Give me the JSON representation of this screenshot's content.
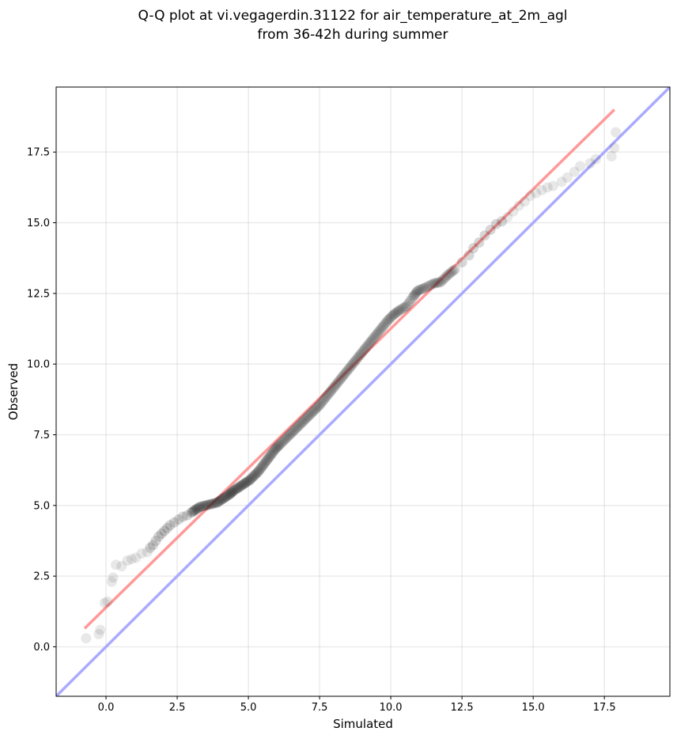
{
  "chart_data": {
    "type": "scatter",
    "title": "Q-Q plot at vi.vegagerdin.31122 for air_temperature_at_2m_agl",
    "subtitle": "from 36-42h during summer",
    "xlabel": "Simulated",
    "ylabel": "Observed",
    "xlim": [
      -1.75,
      19.8
    ],
    "ylim": [
      -1.75,
      19.8
    ],
    "xticks": [
      0.0,
      2.5,
      5.0,
      7.5,
      10.0,
      12.5,
      15.0,
      17.5
    ],
    "yticks": [
      0.0,
      2.5,
      5.0,
      7.5,
      10.0,
      12.5,
      15.0,
      17.5
    ],
    "xtick_labels": [
      "0.0",
      "2.5",
      "5.0",
      "7.5",
      "10.0",
      "12.5",
      "15.0",
      "17.5"
    ],
    "ytick_labels": [
      "0.0",
      "2.5",
      "5.0",
      "7.5",
      "10.0",
      "12.5",
      "15.0",
      "17.5"
    ],
    "grid": true,
    "reference_line": {
      "description": "y = x",
      "color": "#aaaaff"
    },
    "fit_line": {
      "from": [
        -0.75,
        0.65
      ],
      "to": [
        17.85,
        19.0
      ],
      "color": "#ff9999"
    },
    "points_color": "#222222",
    "points": [
      [
        -0.7,
        0.3
      ],
      [
        -0.25,
        0.45
      ],
      [
        -0.2,
        0.6
      ],
      [
        -0.05,
        1.55
      ],
      [
        0.05,
        1.6
      ],
      [
        0.2,
        2.3
      ],
      [
        0.25,
        2.45
      ],
      [
        0.35,
        2.9
      ],
      [
        0.55,
        2.85
      ],
      [
        0.75,
        3.05
      ],
      [
        0.9,
        3.1
      ],
      [
        1.05,
        3.15
      ],
      [
        1.25,
        3.3
      ],
      [
        1.45,
        3.35
      ],
      [
        1.55,
        3.5
      ],
      [
        1.65,
        3.6
      ],
      [
        1.75,
        3.75
      ],
      [
        1.85,
        3.9
      ],
      [
        1.95,
        4.0
      ],
      [
        2.05,
        4.1
      ],
      [
        2.15,
        4.2
      ],
      [
        2.25,
        4.3
      ],
      [
        2.4,
        4.4
      ],
      [
        2.55,
        4.5
      ],
      [
        2.7,
        4.6
      ],
      [
        2.85,
        4.65
      ],
      [
        3.0,
        4.75
      ],
      [
        3.15,
        4.85
      ],
      [
        3.3,
        4.95
      ],
      [
        3.5,
        5.0
      ],
      [
        3.7,
        5.05
      ],
      [
        3.9,
        5.1
      ],
      [
        4.05,
        5.2
      ],
      [
        4.2,
        5.3
      ],
      [
        4.35,
        5.4
      ],
      [
        4.45,
        5.5
      ],
      [
        4.6,
        5.6
      ],
      [
        4.75,
        5.7
      ],
      [
        4.9,
        5.8
      ],
      [
        5.05,
        5.9
      ],
      [
        5.2,
        6.05
      ],
      [
        5.35,
        6.2
      ],
      [
        5.5,
        6.4
      ],
      [
        5.65,
        6.6
      ],
      [
        5.8,
        6.8
      ],
      [
        5.95,
        7.0
      ],
      [
        6.1,
        7.15
      ],
      [
        6.3,
        7.35
      ],
      [
        6.5,
        7.55
      ],
      [
        6.7,
        7.75
      ],
      [
        6.9,
        7.95
      ],
      [
        7.1,
        8.15
      ],
      [
        7.3,
        8.35
      ],
      [
        7.5,
        8.55
      ],
      [
        7.7,
        8.8
      ],
      [
        7.9,
        9.05
      ],
      [
        8.1,
        9.3
      ],
      [
        8.3,
        9.55
      ],
      [
        8.5,
        9.8
      ],
      [
        8.7,
        10.05
      ],
      [
        8.9,
        10.3
      ],
      [
        9.1,
        10.55
      ],
      [
        9.3,
        10.8
      ],
      [
        9.5,
        11.05
      ],
      [
        9.7,
        11.3
      ],
      [
        9.9,
        11.55
      ],
      [
        10.1,
        11.75
      ],
      [
        10.3,
        11.9
      ],
      [
        10.55,
        12.05
      ],
      [
        10.8,
        12.4
      ],
      [
        10.95,
        12.6
      ],
      [
        11.2,
        12.7
      ],
      [
        11.5,
        12.85
      ],
      [
        11.75,
        12.9
      ],
      [
        12.0,
        13.15
      ],
      [
        12.25,
        13.35
      ],
      [
        12.5,
        13.6
      ],
      [
        12.75,
        13.85
      ],
      [
        12.9,
        14.1
      ],
      [
        13.1,
        14.3
      ],
      [
        13.3,
        14.55
      ],
      [
        13.5,
        14.75
      ],
      [
        13.7,
        14.95
      ],
      [
        13.9,
        15.05
      ],
      [
        14.1,
        15.2
      ],
      [
        14.3,
        15.4
      ],
      [
        14.5,
        15.6
      ],
      [
        14.7,
        15.75
      ],
      [
        14.9,
        15.95
      ],
      [
        15.1,
        16.05
      ],
      [
        15.3,
        16.15
      ],
      [
        15.5,
        16.25
      ],
      [
        15.7,
        16.3
      ],
      [
        16.0,
        16.45
      ],
      [
        16.2,
        16.6
      ],
      [
        16.45,
        16.8
      ],
      [
        16.65,
        17.0
      ],
      [
        17.0,
        17.1
      ],
      [
        17.2,
        17.25
      ],
      [
        17.75,
        17.35
      ],
      [
        17.85,
        17.65
      ],
      [
        17.9,
        18.2
      ]
    ]
  }
}
